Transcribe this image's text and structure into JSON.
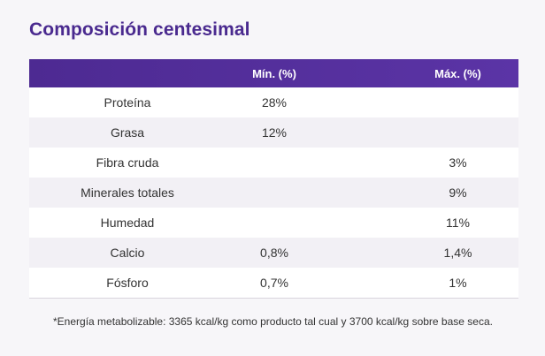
{
  "title": "Composición centesimal",
  "table": {
    "headers": [
      "",
      "Mín. (%)",
      "Máx. (%)"
    ],
    "rows": [
      {
        "name": "Proteína",
        "min": "28%",
        "max": ""
      },
      {
        "name": "Grasa",
        "min": "12%",
        "max": ""
      },
      {
        "name": "Fibra cruda",
        "min": "",
        "max": "3%"
      },
      {
        "name": "Minerales totales",
        "min": "",
        "max": "9%"
      },
      {
        "name": "Humedad",
        "min": "",
        "max": "11%"
      },
      {
        "name": "Calcio",
        "min": "0,8%",
        "max": "1,4%"
      },
      {
        "name": "Fósforo",
        "min": "0,7%",
        "max": "1%"
      }
    ]
  },
  "footnote": "*Energía metabolizable: 3365 kcal/kg como producto tal cual y 3700 kcal/kg sobre base seca.",
  "colors": {
    "accent": "#4a2a8f",
    "header_bg": "#5230a0"
  }
}
